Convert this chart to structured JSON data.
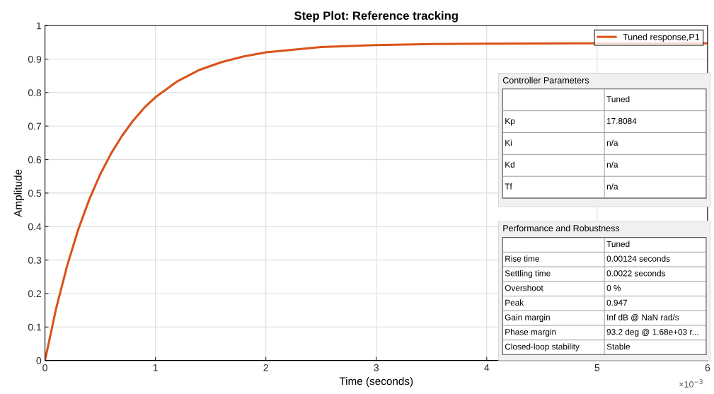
{
  "chart_data": [
    {
      "type": "line",
      "title": "Step Plot: Reference tracking",
      "xlabel": "Time (seconds)",
      "ylabel": "Amplitude",
      "x": [
        0,
        0.1,
        0.2,
        0.3,
        0.4,
        0.5,
        0.6,
        0.7,
        0.8,
        0.9,
        1,
        1.2,
        1.4,
        1.6,
        1.8,
        2,
        2.5,
        3,
        3.5,
        4,
        4.8,
        6
      ],
      "series": [
        {
          "name": "Tuned response,P1",
          "color": "#d95319",
          "values": [
            0,
            0.154,
            0.282,
            0.39,
            0.48,
            0.556,
            0.619,
            0.672,
            0.717,
            0.755,
            0.786,
            0.834,
            0.868,
            0.891,
            0.908,
            0.92,
            0.936,
            0.942,
            0.945,
            0.946,
            0.947,
            0.947
          ]
        }
      ],
      "xlim": [
        0,
        6
      ],
      "xticks": [
        0,
        1,
        2,
        3,
        4,
        5,
        6
      ],
      "ylim": [
        0,
        1
      ],
      "yticks": [
        0,
        0.1,
        0.2,
        0.3,
        0.4,
        0.5,
        0.6,
        0.7,
        0.8,
        0.9,
        1
      ],
      "grid": true,
      "legend": "top right",
      "marker": "none",
      "line_style": "solid",
      "annotations": [
        "×10$^{−3}$"
      ]
    },
    {
      "type": "other",
      "title": "Controller Parameters",
      "categories": [
        null,
        "Kp",
        "Ki",
        "Kd",
        "Tf"
      ],
      "annotations": [
        "Tuned",
        "17.8084",
        "n/a",
        "n/a",
        "n/a"
      ]
    },
    {
      "type": "other",
      "title": "Performance and Robustness",
      "categories": [
        null,
        "Rise time",
        "Settling time",
        "Overshoot",
        "Peak",
        "Gain margin",
        "Phase margin",
        "Closed-loop stability"
      ],
      "annotations": [
        "Tuned",
        "0.00124 seconds",
        "0.0022 seconds",
        "0 %",
        "0.947",
        "Inf dB @ NaN rad/s",
        "93.2 deg @ 1.68e+03 r...",
        "Stable"
      ]
    }
  ]
}
